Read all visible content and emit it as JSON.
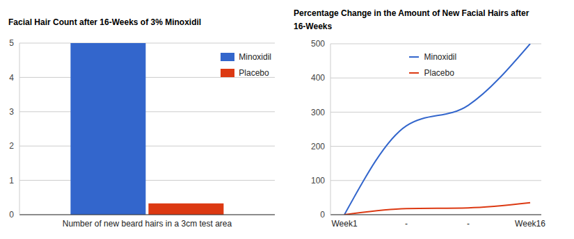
{
  "chart_data": [
    {
      "type": "bar",
      "title": "Facial Hair Count after 16-Weeks of 3% Minoxidil",
      "categories": [
        "Number of new beard hairs in a 3cm test area"
      ],
      "series": [
        {
          "name": "Minoxidil",
          "color": "#3366cc",
          "values": [
            5
          ]
        },
        {
          "name": "Placebo",
          "color": "#dc3912",
          "values": [
            0.33
          ]
        }
      ],
      "ylim": [
        0,
        5
      ],
      "yticks": [
        0,
        1,
        2,
        3,
        4,
        5
      ],
      "grid": true,
      "legend": "top-right"
    },
    {
      "type": "line",
      "title": "Percentage Change in the Amount of New Facial Hairs after 16-Weeks",
      "categories": [
        "Week1",
        "-",
        "-",
        "Week16"
      ],
      "series": [
        {
          "name": "Minoxidil",
          "color": "#3366cc",
          "values": [
            0,
            260,
            320,
            500
          ]
        },
        {
          "name": "Placebo",
          "color": "#dc3912",
          "values": [
            0,
            18,
            20,
            35
          ]
        }
      ],
      "ylim": [
        0,
        500
      ],
      "yticks": [
        0,
        100,
        200,
        300,
        400,
        500
      ],
      "grid": true,
      "legend": "top"
    }
  ]
}
